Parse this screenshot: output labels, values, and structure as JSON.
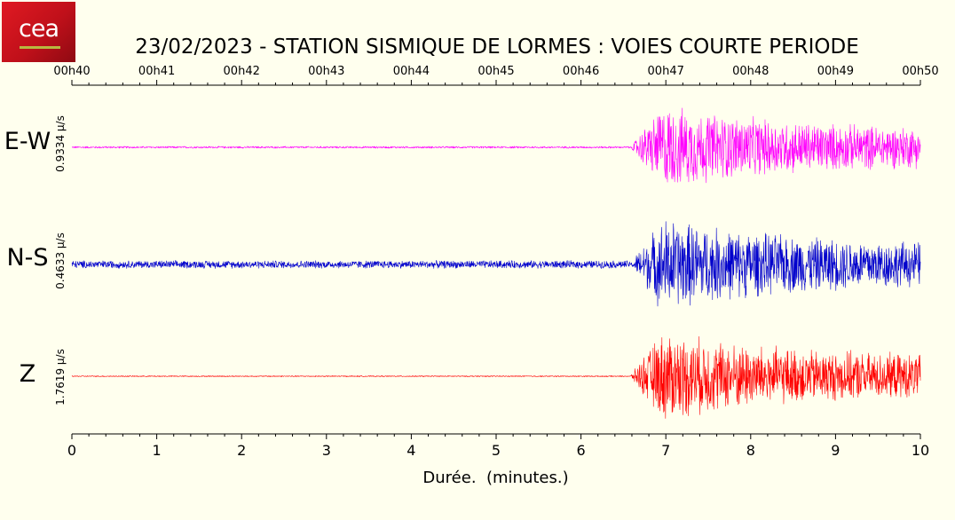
{
  "logo": {
    "text": "cea"
  },
  "chart_data": {
    "type": "line",
    "title": "23/02/2023  -  STATION SISMIQUE DE LORMES : VOIES COURTE PERIODE",
    "xlabel": "Durée.  (minutes.)",
    "xlim": [
      0,
      10
    ],
    "x_ticks": [
      0,
      1,
      2,
      3,
      4,
      5,
      6,
      7,
      8,
      9,
      10
    ],
    "top_axis_labels": [
      "00h40",
      "00h41",
      "00h42",
      "00h43",
      "00h44",
      "00h45",
      "00h46",
      "00h47",
      "00h48",
      "00h49",
      "00h50"
    ],
    "grid": false,
    "onset_minutes": 6.58,
    "series": [
      {
        "name": "E-W",
        "scale_label": "0.9334 µ/s",
        "color": "#ff00ff",
        "pre_event_amplitude": 0.02,
        "peak_amplitude": 1.0
      },
      {
        "name": "N-S",
        "scale_label": "0.4633 µ/s",
        "color": "#0000cc",
        "pre_event_amplitude": 0.07,
        "peak_amplitude": 1.0
      },
      {
        "name": "Z",
        "scale_label": "1.7619 µ/s",
        "color": "#ff0000",
        "pre_event_amplitude": 0.01,
        "peak_amplitude": 1.0
      }
    ]
  }
}
